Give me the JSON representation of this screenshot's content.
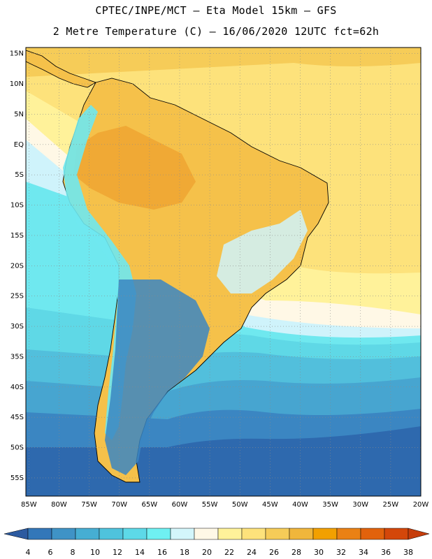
{
  "header": {
    "line1": "CPTEC/INPE/MCT –  Eta Model 15km – GFS",
    "line2": "2 Metre Temperature (C) – 16/06/2020 12UTC fct=62h"
  },
  "map": {
    "lat_labels": [
      "15N",
      "10N",
      "5N",
      "EQ",
      "5S",
      "10S",
      "15S",
      "20S",
      "25S",
      "30S",
      "35S",
      "40S",
      "45S",
      "50S",
      "55S"
    ],
    "lon_labels": [
      "85W",
      "80W",
      "75W",
      "70W",
      "65W",
      "60W",
      "55W",
      "50W",
      "45W",
      "40W",
      "35W",
      "30W",
      "25W",
      "20W"
    ],
    "extent": {
      "lon": [
        -85.5,
        -20
      ],
      "lat": [
        -58,
        16
      ]
    },
    "palette": {
      "ocean_deep": "#2e69ae",
      "land": "#f5c14a",
      "coast": "#000000"
    }
  },
  "legend": {
    "labels": [
      "4",
      "6",
      "8",
      "10",
      "12",
      "14",
      "16",
      "18",
      "20",
      "22",
      "24",
      "26",
      "28",
      "30",
      "32",
      "34",
      "36",
      "38"
    ],
    "colors": [
      "#2c5aa0",
      "#3377b9",
      "#3f93c6",
      "#46aed3",
      "#4fc3dd",
      "#5dd9e8",
      "#6ff0f2",
      "#d3f6fb",
      "#fff8e6",
      "#fff29a",
      "#fde27b",
      "#f6cc58",
      "#f0b63b",
      "#f2a000",
      "#ea8114",
      "#e2620c",
      "#d4470a",
      "#c63d0b"
    ]
  },
  "chart_data": {
    "type": "heatmap",
    "title": "CPTEC/INPE/MCT – Eta Model 15km – GFS",
    "subtitle": "2 Metre Temperature (C) – 16/06/2020 12UTC fct=62h",
    "variable": "2 Metre Temperature (C)",
    "color_scale_values": [
      4,
      6,
      8,
      10,
      12,
      14,
      16,
      18,
      20,
      22,
      24,
      26,
      28,
      30,
      32,
      34,
      36,
      38
    ],
    "lon_range": [
      -85.5,
      -20
    ],
    "lat_range": [
      -58,
      16
    ]
  }
}
